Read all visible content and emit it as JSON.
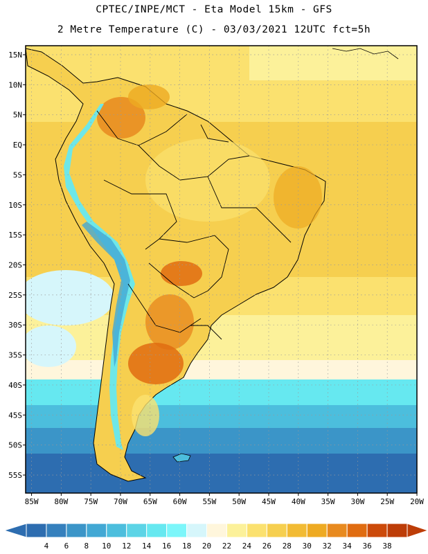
{
  "header": {
    "line1": "CPTEC/INPE/MCT -  Eta Model 15km - GFS",
    "line2": "2 Metre Temperature (C) - 03/03/2021 12UTC fct=5h"
  },
  "map": {
    "lat_labels": [
      "15N",
      "10N",
      "5N",
      "EQ",
      "5S",
      "10S",
      "15S",
      "20S",
      "25S",
      "30S",
      "35S",
      "40S",
      "45S",
      "50S",
      "55S"
    ],
    "lat_values": [
      15,
      10,
      5,
      0,
      -5,
      -10,
      -15,
      -20,
      -25,
      -30,
      -35,
      -40,
      -45,
      -50,
      -55
    ],
    "lon_labels": [
      "85W",
      "80W",
      "75W",
      "70W",
      "65W",
      "60W",
      "55W",
      "50W",
      "45W",
      "40W",
      "35W",
      "30W",
      "25W",
      "20W"
    ],
    "lon_values": [
      -85,
      -80,
      -75,
      -70,
      -65,
      -60,
      -55,
      -50,
      -45,
      -40,
      -35,
      -30,
      -25,
      -20
    ],
    "lon_range": [
      -86,
      -20
    ],
    "lat_range": [
      -58,
      16.5
    ]
  },
  "colorbar": {
    "labels": [
      "4",
      "6",
      "8",
      "10",
      "12",
      "14",
      "16",
      "18",
      "20",
      "22",
      "24",
      "26",
      "28",
      "30",
      "32",
      "34",
      "36",
      "38"
    ],
    "colors": [
      "#2d6db0",
      "#3580bd",
      "#3b95c8",
      "#42a8d4",
      "#4cbedd",
      "#5cd4e6",
      "#66e8f0",
      "#7cf6fa",
      "#d6f6fb",
      "#fff6dc",
      "#fcf19a",
      "#fbe16f",
      "#f6cf4f",
      "#f2bb34",
      "#eeaa22",
      "#e88a1f",
      "#e06c11",
      "#cc4a0a",
      "#bd3d08"
    ]
  }
}
